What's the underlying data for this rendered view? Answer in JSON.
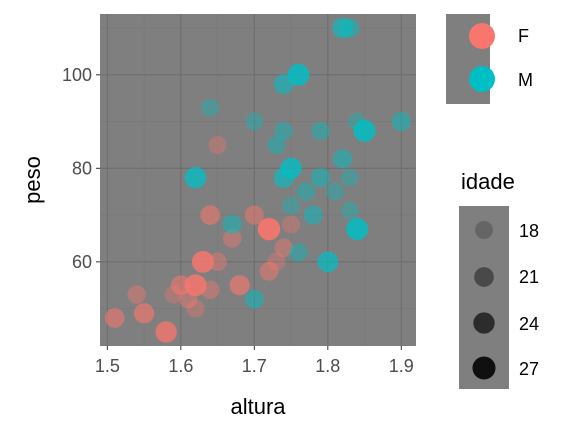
{
  "chart_data": {
    "type": "scatter",
    "xlabel": "altura",
    "ylabel": "peso",
    "xlim": [
      1.49,
      1.92
    ],
    "ylim": [
      42,
      113
    ],
    "x_ticks": [
      1.5,
      1.6,
      1.7,
      1.8,
      1.9
    ],
    "x_tick_labels": [
      "1.5",
      "1.6",
      "1.7",
      "1.8",
      "1.9"
    ],
    "y_ticks": [
      60,
      80,
      100
    ],
    "y_tick_labels": [
      "60",
      "80",
      "100"
    ],
    "grid": true,
    "colors": {
      "panel_background": "#7f7f7f",
      "grid_major": "#6e6e6e",
      "grid_minor": "#777777",
      "F": "#F8766D",
      "M": "#00BFC4",
      "size_key": "#000000"
    },
    "color_legend": {
      "title": "",
      "entries": [
        {
          "label": "F",
          "color": "#F8766D"
        },
        {
          "label": "M",
          "color": "#00BFC4"
        }
      ]
    },
    "size_legend": {
      "title": "idade",
      "entries": [
        {
          "label": "18",
          "value": 18
        },
        {
          "label": "21",
          "value": 21
        },
        {
          "label": "24",
          "value": 24
        },
        {
          "label": "27",
          "value": 27
        }
      ]
    },
    "series": [
      {
        "name": "F",
        "color": "#F8766D",
        "points": [
          {
            "x": 1.51,
            "y": 48,
            "idade": 21
          },
          {
            "x": 1.54,
            "y": 53,
            "idade": 19
          },
          {
            "x": 1.55,
            "y": 49,
            "idade": 22
          },
          {
            "x": 1.58,
            "y": 45,
            "idade": 24
          },
          {
            "x": 1.59,
            "y": 53,
            "idade": 18
          },
          {
            "x": 1.6,
            "y": 55,
            "idade": 21
          },
          {
            "x": 1.61,
            "y": 52,
            "idade": 19
          },
          {
            "x": 1.62,
            "y": 55,
            "idade": 25
          },
          {
            "x": 1.62,
            "y": 50,
            "idade": 18
          },
          {
            "x": 1.63,
            "y": 60,
            "idade": 25
          },
          {
            "x": 1.64,
            "y": 54,
            "idade": 19
          },
          {
            "x": 1.64,
            "y": 70,
            "idade": 21
          },
          {
            "x": 1.65,
            "y": 85,
            "idade": 18
          },
          {
            "x": 1.65,
            "y": 60,
            "idade": 19
          },
          {
            "x": 1.67,
            "y": 65,
            "idade": 19
          },
          {
            "x": 1.68,
            "y": 55,
            "idade": 22
          },
          {
            "x": 1.7,
            "y": 70,
            "idade": 20
          },
          {
            "x": 1.72,
            "y": 58,
            "idade": 20
          },
          {
            "x": 1.72,
            "y": 67,
            "idade": 26
          },
          {
            "x": 1.73,
            "y": 60,
            "idade": 18
          },
          {
            "x": 1.74,
            "y": 63,
            "idade": 19
          },
          {
            "x": 1.75,
            "y": 68,
            "idade": 18
          }
        ]
      },
      {
        "name": "M",
        "color": "#00BFC4",
        "points": [
          {
            "x": 1.62,
            "y": 78,
            "idade": 24
          },
          {
            "x": 1.64,
            "y": 93,
            "idade": 18
          },
          {
            "x": 1.67,
            "y": 68,
            "idade": 20
          },
          {
            "x": 1.7,
            "y": 52,
            "idade": 20
          },
          {
            "x": 1.7,
            "y": 90,
            "idade": 18
          },
          {
            "x": 1.73,
            "y": 85,
            "idade": 19
          },
          {
            "x": 1.74,
            "y": 78,
            "idade": 22
          },
          {
            "x": 1.74,
            "y": 88,
            "idade": 19
          },
          {
            "x": 1.74,
            "y": 98,
            "idade": 21
          },
          {
            "x": 1.75,
            "y": 72,
            "idade": 18
          },
          {
            "x": 1.75,
            "y": 80,
            "idade": 24
          },
          {
            "x": 1.76,
            "y": 100,
            "idade": 25
          },
          {
            "x": 1.76,
            "y": 62,
            "idade": 19
          },
          {
            "x": 1.77,
            "y": 75,
            "idade": 19
          },
          {
            "x": 1.78,
            "y": 70,
            "idade": 20
          },
          {
            "x": 1.79,
            "y": 88,
            "idade": 19
          },
          {
            "x": 1.79,
            "y": 78,
            "idade": 20
          },
          {
            "x": 1.8,
            "y": 60,
            "idade": 23
          },
          {
            "x": 1.81,
            "y": 75,
            "idade": 18
          },
          {
            "x": 1.82,
            "y": 82,
            "idade": 20
          },
          {
            "x": 1.82,
            "y": 110,
            "idade": 22
          },
          {
            "x": 1.83,
            "y": 78,
            "idade": 18
          },
          {
            "x": 1.83,
            "y": 71,
            "idade": 18
          },
          {
            "x": 1.83,
            "y": 110,
            "idade": 20
          },
          {
            "x": 1.84,
            "y": 67,
            "idade": 25
          },
          {
            "x": 1.84,
            "y": 90,
            "idade": 18
          },
          {
            "x": 1.85,
            "y": 88,
            "idade": 25
          },
          {
            "x": 1.9,
            "y": 90,
            "idade": 20
          }
        ]
      }
    ]
  }
}
